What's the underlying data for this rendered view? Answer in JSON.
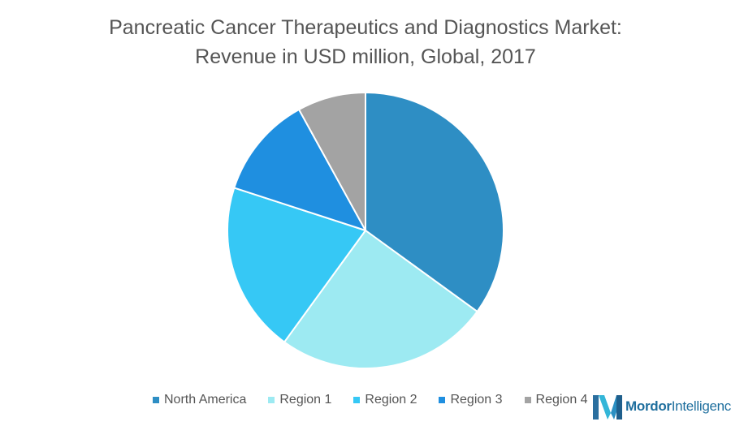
{
  "chart_data": {
    "type": "pie",
    "title_line1": "Pancreatic Cancer Therapeutics and Diagnostics Market:",
    "title_line2": "Revenue in USD million, Global, 2017",
    "slices": [
      {
        "name": "North America",
        "value": 35,
        "color": "#2e8ec4"
      },
      {
        "name": "Region 1",
        "value": 25,
        "color": "#9deaf2"
      },
      {
        "name": "Region 2",
        "value": 20,
        "color": "#36c8f5"
      },
      {
        "name": "Region 3",
        "value": 12,
        "color": "#1f8fe0"
      },
      {
        "name": "Region 4",
        "value": 8,
        "color": "#a3a3a3"
      }
    ],
    "legend_position": "bottom"
  },
  "branding": {
    "logo_word1": "Mordor",
    "logo_word2": "Intelligence"
  }
}
